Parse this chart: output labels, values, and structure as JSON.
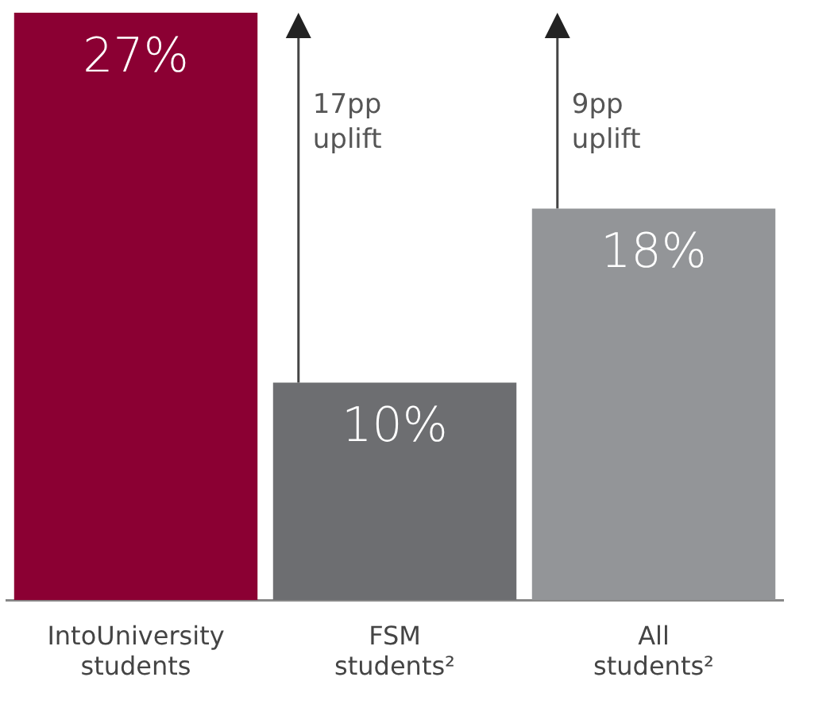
{
  "chart_data": {
    "type": "bar",
    "categories": [
      "IntoUniversity students",
      "FSM students²",
      "All students²"
    ],
    "values": [
      27,
      10,
      18
    ],
    "value_labels": [
      "27%",
      "10%",
      "18%"
    ],
    "colors": [
      "#8b0033",
      "#6d6e71",
      "#939598"
    ],
    "grid": false,
    "legend": false,
    "tick_labels": "x",
    "annotations": [
      "17pp uplift",
      "9pp uplift"
    ]
  }
}
